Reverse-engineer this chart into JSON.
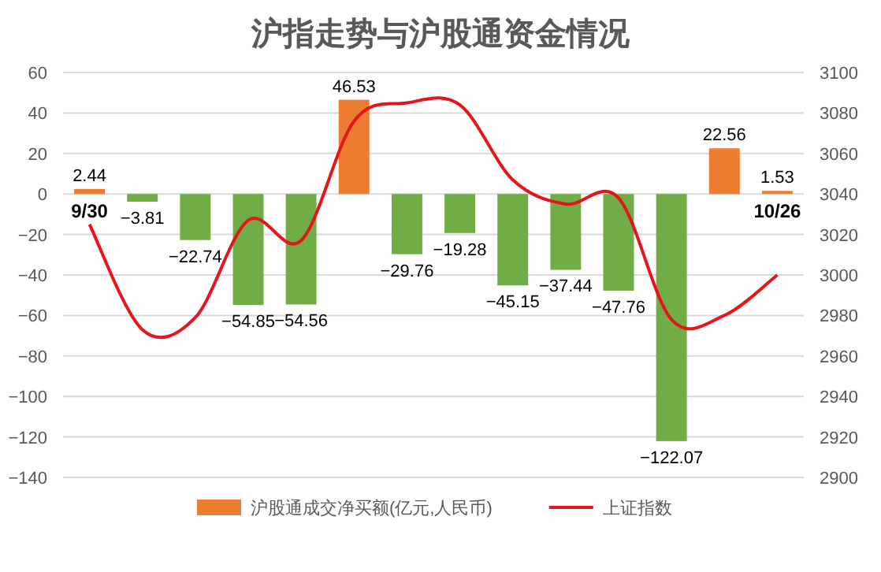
{
  "chart_data": {
    "type": "bar",
    "title": "沪指走势与沪股通资金情况",
    "categories": [
      "9/30",
      null,
      null,
      null,
      null,
      null,
      null,
      null,
      null,
      null,
      null,
      null,
      null,
      "10/26"
    ],
    "series": [
      {
        "name": "沪股通成交净买额(亿元,人民币)",
        "type": "bar",
        "color": "#ed7d31",
        "colors": [
          "#ed7d31",
          "#70ad47",
          "#70ad47",
          "#70ad47",
          "#70ad47",
          "#ed7d31",
          "#70ad47",
          "#70ad47",
          "#70ad47",
          "#70ad47",
          "#70ad47",
          "#70ad47",
          "#ed7d31",
          "#ed7d31"
        ],
        "values": [
          2.44,
          -3.81,
          -22.74,
          -54.85,
          -54.56,
          46.53,
          -29.76,
          -19.28,
          -45.15,
          -37.44,
          -47.76,
          -122.07,
          22.56,
          1.53
        ],
        "value_labels": [
          "2.44",
          "−3.81",
          "−22.74",
          "−54.85",
          "−54.56",
          "46.53",
          "−29.76",
          "−19.28",
          "−45.15",
          "−37.44",
          "−47.76",
          "−122.07",
          "22.56",
          "1.53"
        ]
      },
      {
        "name": "上证指数",
        "type": "line",
        "axis": "y2",
        "color": "#e8141b",
        "marker": "none",
        "values": [
          3025,
          2973,
          2979,
          3027,
          3017,
          3076,
          3085,
          3084,
          3047,
          3035,
          3038,
          2978,
          2980,
          3000
        ]
      }
    ],
    "ylim": [
      -140,
      60
    ],
    "yticks": [
      -140,
      -120,
      -100,
      -80,
      -60,
      -40,
      -20,
      0,
      20,
      40,
      60
    ],
    "y2lim": [
      2900,
      3100
    ],
    "y2ticks": [
      2900,
      2920,
      2940,
      2960,
      2980,
      3000,
      3020,
      3040,
      3060,
      3080,
      3100
    ],
    "grid": "y",
    "legend": "bottom"
  }
}
